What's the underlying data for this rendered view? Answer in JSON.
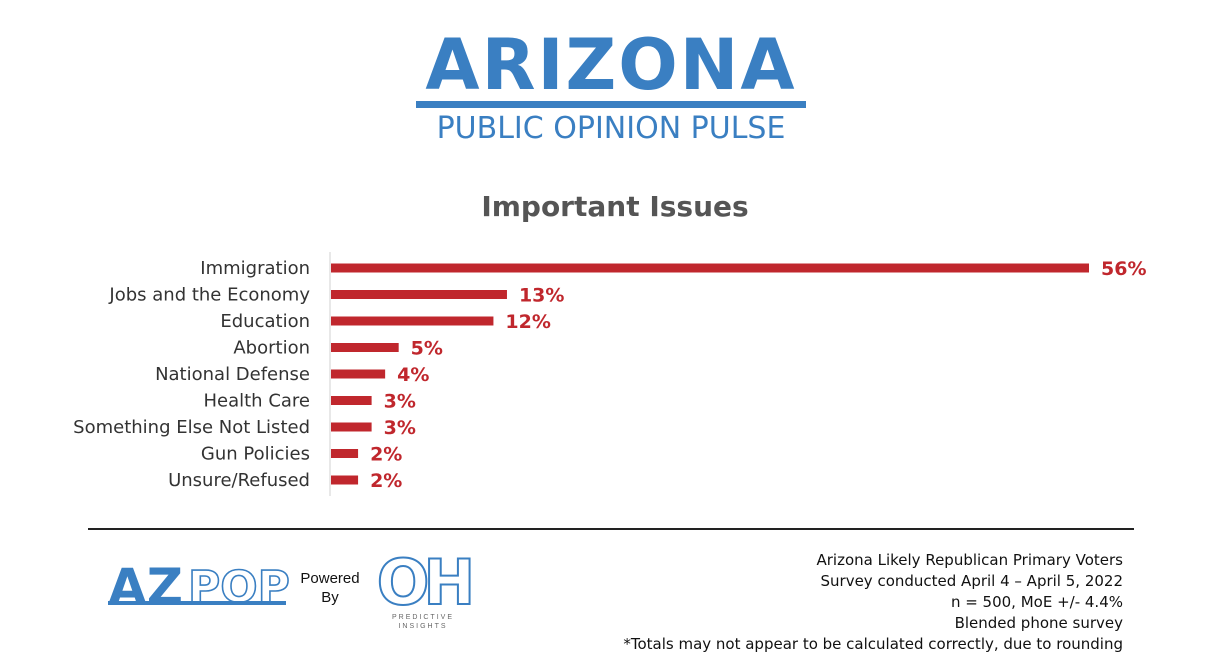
{
  "brand": {
    "title": "ARIZONA",
    "subtitle": "PUBLIC OPINION PULSE",
    "color": "#3a7fc2"
  },
  "chart_data": {
    "type": "bar",
    "orientation": "horizontal",
    "title": "Important Issues",
    "categories": [
      "Immigration",
      "Jobs and the Economy",
      "Education",
      "Abortion",
      "National Defense",
      "Health Care",
      "Something Else Not Listed",
      "Gun Policies",
      "Unsure/Refused"
    ],
    "values": [
      56,
      13,
      12,
      5,
      4,
      3,
      3,
      2,
      2
    ],
    "value_labels": [
      "56%",
      "13%",
      "12%",
      "5%",
      "4%",
      "3%",
      "3%",
      "2%",
      "2%"
    ],
    "xlim": [
      0,
      56
    ],
    "grid": false,
    "bar_color": "#c0272d"
  },
  "footer": {
    "logo_left": {
      "part1": "AZ",
      "part2": "POP"
    },
    "powered_by": [
      "Powered",
      "By"
    ],
    "logo_right": {
      "mark": "OH",
      "caption_lines": [
        "PREDICTIVE",
        "INSIGHTS"
      ]
    },
    "notes": [
      "Arizona Likely Republican Primary Voters",
      "Survey conducted April 4 – April 5, 2022",
      "n = 500, MoE +/- 4.4%",
      "Blended phone survey",
      "*Totals may not appear to be calculated correctly, due to rounding"
    ]
  }
}
